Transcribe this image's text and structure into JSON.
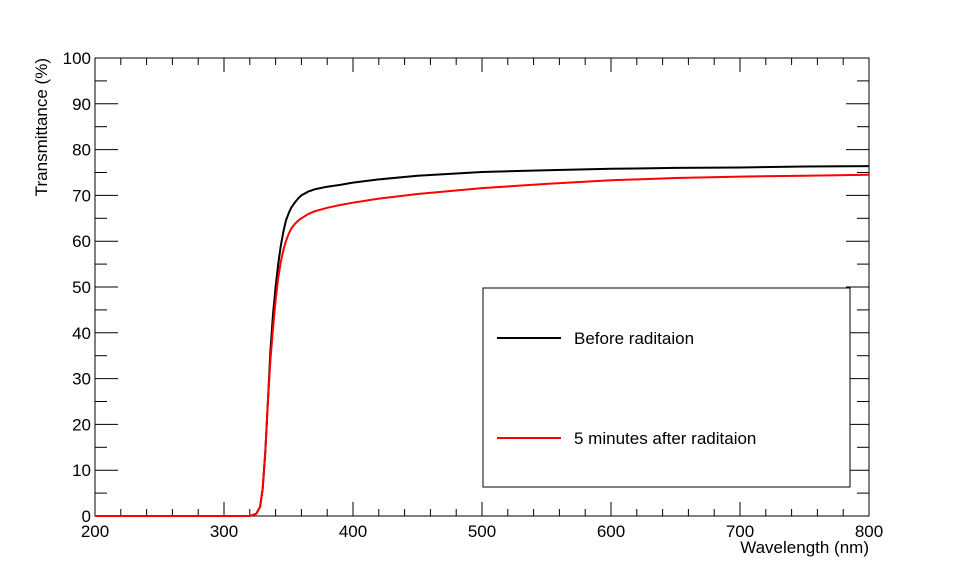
{
  "chart_data": {
    "type": "line",
    "title": "",
    "xlabel": "Wavelength (nm)",
    "ylabel": "Transmittance (%)",
    "xlim": [
      200,
      800
    ],
    "ylim": [
      0,
      100
    ],
    "x_ticks": [
      200,
      300,
      400,
      500,
      600,
      700,
      800
    ],
    "y_ticks": [
      0,
      10,
      20,
      30,
      40,
      50,
      60,
      70,
      80,
      90,
      100
    ],
    "grid": false,
    "legend_position": "bottom-right",
    "series": [
      {
        "name": "Before raditaion",
        "color": "#000000",
        "x": [
          200,
          320,
          325,
          328,
          330,
          332,
          334,
          336,
          338,
          340,
          342,
          344,
          346,
          348,
          350,
          352,
          355,
          358,
          360,
          365,
          370,
          380,
          390,
          400,
          420,
          450,
          500,
          550,
          600,
          650,
          700,
          750,
          800
        ],
        "y": [
          0,
          0,
          0.5,
          2,
          6,
          14,
          25,
          36,
          44,
          50,
          55,
          59,
          62,
          64.5,
          66,
          67.3,
          68.5,
          69.5,
          70,
          70.8,
          71.3,
          71.9,
          72.3,
          72.8,
          73.5,
          74.3,
          75.1,
          75.5,
          75.8,
          76.0,
          76.1,
          76.3,
          76.4
        ]
      },
      {
        "name": "5 minutes after raditaion",
        "color": "#ff0000",
        "x": [
          200,
          320,
          325,
          328,
          330,
          332,
          334,
          336,
          338,
          340,
          342,
          344,
          346,
          348,
          350,
          352,
          355,
          358,
          360,
          365,
          370,
          380,
          390,
          400,
          420,
          450,
          500,
          550,
          600,
          650,
          700,
          750,
          800
        ],
        "y": [
          0,
          0,
          0.5,
          2,
          6,
          14,
          25,
          34,
          41,
          47,
          52,
          55.5,
          58,
          60,
          61.5,
          62.7,
          63.8,
          64.6,
          65,
          65.9,
          66.5,
          67.3,
          67.9,
          68.4,
          69.3,
          70.3,
          71.6,
          72.5,
          73.3,
          73.8,
          74.1,
          74.3,
          74.5
        ]
      }
    ]
  }
}
